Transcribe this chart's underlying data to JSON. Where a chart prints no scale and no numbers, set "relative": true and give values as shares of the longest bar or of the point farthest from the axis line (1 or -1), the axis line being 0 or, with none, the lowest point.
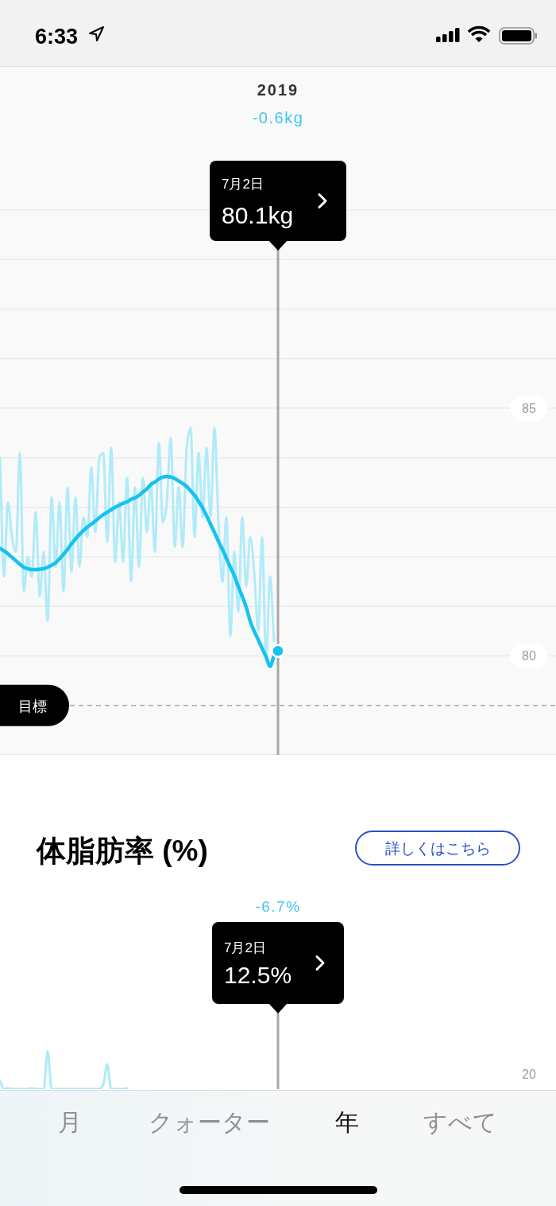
{
  "chart_data": [
    {
      "type": "other",
      "annotations": [
        "6:33"
      ]
    },
    {
      "type": "line",
      "title": "2019",
      "subtitle": "-0.6kg",
      "tick_labels": "y",
      "grid": "y",
      "categories": [
        null,
        null,
        null,
        null,
        null,
        null,
        null,
        null,
        null,
        null,
        null,
        null,
        null,
        null,
        null,
        null,
        null,
        null,
        null,
        null,
        null,
        null,
        null,
        null,
        null,
        null,
        null,
        null,
        null,
        null,
        null,
        null,
        null,
        null,
        null,
        null,
        null,
        null,
        null,
        null,
        null,
        null,
        null,
        null,
        null,
        null,
        null,
        null,
        null,
        null,
        null,
        null,
        null,
        null,
        null,
        null,
        null,
        null,
        null,
        null,
        null,
        null,
        null,
        null,
        null,
        null,
        null,
        null,
        null,
        null,
        null,
        null,
        null,
        null,
        null,
        null,
        null,
        null,
        null,
        null,
        null,
        null,
        null,
        null,
        null,
        null,
        null,
        null,
        null,
        null,
        null,
        null,
        null,
        null,
        null,
        null,
        null,
        null,
        null,
        null,
        null,
        null,
        null,
        null,
        null,
        null,
        null,
        null,
        null,
        null,
        null,
        null,
        null,
        null,
        null,
        null,
        null,
        null,
        null,
        null,
        null,
        null,
        null,
        null,
        null,
        null,
        null,
        null,
        null,
        null,
        null,
        null,
        null,
        null,
        null,
        null,
        null,
        null,
        null,
        null,
        null
      ],
      "series": [
        {
          "color": "#b0ebfa",
          "values": [
            84.0,
            81.6,
            83.1,
            82.4,
            82.1,
            84.1,
            81.3,
            82.0,
            81.6,
            82.9,
            81.2,
            82.1,
            80.7,
            83.2,
            81.8,
            83.1,
            81.3,
            83.4,
            81.7,
            83.2,
            81.8,
            82.8,
            82.4,
            83.8,
            82.5,
            84.0,
            84.1,
            82.3,
            84.2,
            81.9,
            83.1,
            81.9,
            83.6,
            81.5,
            83.4,
            81.8,
            83.6,
            82.5,
            83.5,
            82.1,
            84.3,
            82.7,
            83.1,
            84.4,
            82.2,
            83.4,
            82.2,
            84.2,
            84.6,
            82.4,
            84.1,
            82.8,
            84.2,
            82.8,
            84.6,
            82.7,
            81.5,
            82.8,
            80.4,
            82.1,
            80.9,
            82.8,
            81.4,
            82.4,
            81.7,
            80.5,
            82.4,
            79.9,
            81.6,
            80.3,
            null,
            null,
            null,
            null,
            null,
            null,
            null,
            null,
            null,
            null,
            null,
            null,
            null,
            null,
            null,
            null,
            null,
            null,
            null,
            null,
            null,
            null,
            null,
            null,
            null,
            null,
            null,
            null,
            null,
            null,
            null,
            null,
            null,
            null,
            null,
            null,
            null,
            null,
            null,
            null,
            null,
            null,
            null,
            null,
            null,
            null,
            null,
            null,
            null,
            null,
            null,
            null,
            null,
            null,
            null,
            null,
            null,
            null,
            null,
            null,
            null,
            null,
            null,
            null,
            null,
            null,
            null,
            null,
            null,
            null,
            null
          ]
        },
        {
          "color": "#16c2f1",
          "values": [
            82.17,
            82.12,
            82.06,
            81.99,
            81.92,
            81.85,
            81.79,
            81.76,
            81.74,
            81.74,
            81.75,
            81.76,
            81.79,
            81.83,
            81.88,
            81.96,
            82.05,
            82.15,
            82.26,
            82.36,
            82.45,
            82.53,
            82.6,
            82.66,
            82.72,
            82.79,
            82.85,
            82.9,
            82.95,
            83.0,
            83.04,
            83.08,
            83.11,
            83.16,
            83.19,
            83.24,
            83.31,
            83.37,
            83.46,
            83.51,
            83.57,
            83.61,
            83.62,
            83.61,
            83.58,
            83.53,
            83.48,
            83.42,
            83.33,
            83.24,
            83.12,
            82.99,
            82.83,
            82.66,
            82.49,
            82.31,
            82.15,
            81.97,
            81.79,
            81.62,
            81.4,
            81.2,
            80.98,
            80.7,
            80.5,
            80.33,
            80.15,
            79.98,
            79.79,
            80.0,
            80.1,
            null,
            null,
            null,
            null,
            null,
            null,
            null,
            null,
            null,
            null,
            null,
            null,
            null,
            null,
            null,
            null,
            null,
            null,
            null,
            null,
            null,
            null,
            null,
            null,
            null,
            null,
            null,
            null,
            null,
            null,
            null,
            null,
            null,
            null,
            null,
            null,
            null,
            null,
            null,
            null,
            null,
            null,
            null,
            null,
            null,
            null,
            null,
            null,
            null,
            null,
            null,
            null,
            null,
            null,
            null,
            null,
            null,
            null,
            null,
            null,
            null,
            null,
            null,
            null,
            null,
            null,
            null,
            null,
            null,
            null
          ]
        }
      ],
      "ylim": [
        78,
        89.45
      ],
      "yticks": [
        80,
        {
          "value": 81,
          "label": null
        },
        {
          "value": 82,
          "label": null
        },
        {
          "value": 83,
          "label": null
        },
        {
          "value": 84,
          "label": null
        },
        85,
        {
          "value": 86,
          "label": null
        },
        {
          "value": 87,
          "label": null
        },
        {
          "value": 88,
          "label": null
        },
        {
          "value": 89,
          "label": null
        }
      ],
      "ref_lines": [
        {
          "axis": "y",
          "value": 79,
          "label": "目標",
          "color": "#aaaaaa",
          "line_style": "dashed"
        }
      ],
      "annotations": [
        "7月2日",
        "80.1kg"
      ]
    },
    {
      "type": "line",
      "title": "体脂肪率 (%)",
      "subtitle": "-6.7%",
      "relative": true,
      "categories": [
        null,
        null,
        null,
        null,
        null,
        null,
        null,
        null,
        null,
        null,
        null,
        null,
        null,
        null,
        null,
        null,
        null,
        null,
        null,
        null,
        null,
        null,
        null,
        null,
        null,
        null,
        null,
        null,
        null,
        null,
        null,
        null,
        null,
        null,
        null,
        null,
        null,
        null,
        null,
        null,
        null,
        null,
        null,
        null,
        null,
        null,
        null,
        null,
        null,
        null,
        null,
        null,
        null,
        null,
        null,
        null,
        null,
        null,
        null,
        null,
        null,
        null,
        null,
        null,
        null,
        null,
        null,
        null,
        null,
        null,
        null,
        null,
        null,
        null,
        null,
        null,
        null,
        null,
        null,
        null,
        null,
        null,
        null,
        null,
        null,
        null,
        null,
        null,
        null,
        null,
        null,
        null,
        null,
        null,
        null,
        null,
        null,
        null,
        null,
        null,
        null,
        null,
        null,
        null,
        null,
        null,
        null,
        null,
        null,
        null,
        null,
        null,
        null,
        null,
        null,
        null,
        null,
        null,
        null,
        null,
        null,
        null,
        null,
        null,
        null,
        null,
        null,
        null,
        null,
        null,
        null,
        null,
        null,
        null,
        null,
        null,
        null,
        null,
        null,
        null,
        null
      ],
      "series": [
        {
          "color": "#aeeaf9",
          "values": [
            0.21,
            0,
            0.02,
            0,
            0,
            0,
            0,
            0,
            0.02,
            0,
            0,
            0,
            1,
            0,
            0,
            0,
            0,
            0,
            0,
            0,
            0,
            0,
            0,
            0,
            0,
            0,
            0.12,
            0.65,
            0,
            0,
            0,
            0,
            0.02,
            null,
            null,
            null,
            null,
            null,
            null,
            null,
            null,
            null,
            null,
            null,
            null,
            null,
            null,
            null,
            null,
            null,
            null,
            null,
            null,
            null,
            null,
            null,
            null,
            null,
            null,
            null,
            null,
            null,
            null,
            null,
            null,
            null,
            null,
            null,
            null,
            null,
            null,
            null,
            null,
            null,
            null,
            null,
            null,
            null,
            null,
            null,
            null,
            null,
            null,
            null,
            null,
            null,
            null,
            null,
            null,
            null,
            null,
            null,
            null,
            null,
            null,
            null,
            null,
            null,
            null,
            null,
            null,
            null,
            null,
            null,
            null,
            null,
            null,
            null,
            null,
            null,
            null,
            null,
            null,
            null,
            null,
            null,
            null,
            null,
            null,
            null,
            null,
            null,
            null,
            null,
            null,
            null,
            null,
            null,
            null,
            null,
            null,
            null,
            null,
            null,
            null,
            null,
            null,
            null,
            null,
            null,
            null
          ]
        }
      ],
      "annotations": [
        "詳しくはこちら",
        "20",
        "7月2日",
        "12.5%"
      ]
    },
    {
      "type": "other",
      "annotations": [
        "月",
        "クォーター",
        "年",
        "すべて"
      ],
      "colors": [
        "#8e8e93",
        "#8e8e93",
        "#111111",
        "#8e8e93"
      ]
    }
  ]
}
